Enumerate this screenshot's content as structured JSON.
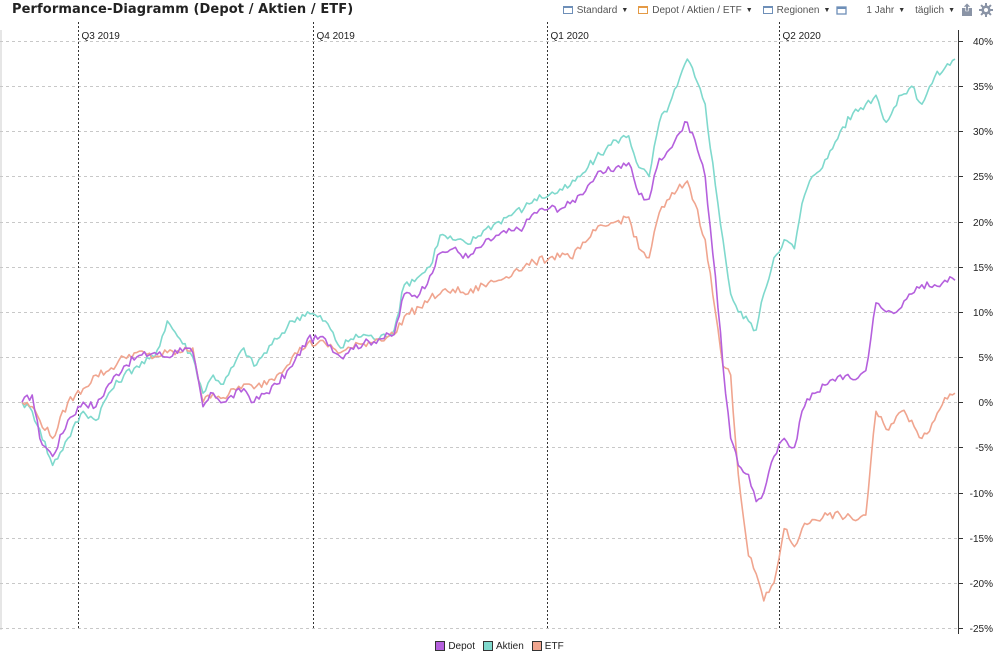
{
  "header": {
    "title": "Performance-Diagramm (Depot / Aktien / ETF)",
    "controls": [
      {
        "label": "Standard",
        "icon": "chart-view-icon",
        "box": "blue"
      },
      {
        "label": "Depot / Aktien / ETF",
        "icon": "chart-view-icon",
        "box": "orange"
      },
      {
        "label": "Regionen",
        "icon": "chart-view-icon",
        "box": "blue"
      }
    ],
    "period": "1 Jahr",
    "interval": "täglich",
    "icons": [
      "fullscreen-icon",
      "export-icon",
      "settings-icon"
    ]
  },
  "colors": {
    "depot": "#b560dd",
    "aktien": "#7fd9cd",
    "etf": "#f0a58f"
  },
  "chart_data": {
    "type": "line",
    "title": "",
    "xlabel": "",
    "ylabel": "",
    "x_range": [
      "2019-06-09",
      "2020-06-09"
    ],
    "ylim": [
      -25,
      40
    ],
    "y_ticks": [
      40,
      35,
      30,
      25,
      20,
      15,
      10,
      5,
      0,
      -5,
      -10,
      -15,
      -20,
      -25
    ],
    "y_tick_suffix": "%",
    "y_axis_side": "right",
    "grid": true,
    "legend_position": "bottom-center",
    "quarter_markers": [
      {
        "label": "Q3 2019",
        "date": "2019-07-01"
      },
      {
        "label": "Q4 2019",
        "date": "2019-10-01"
      },
      {
        "label": "Q1 2020",
        "date": "2020-01-01"
      },
      {
        "label": "Q2 2020",
        "date": "2020-04-01"
      }
    ],
    "series": [
      {
        "name": "Depot",
        "color": "#b560dd",
        "points": [
          [
            "2019-06-09",
            0
          ],
          [
            "2019-06-13",
            0.8
          ],
          [
            "2019-06-16",
            -4
          ],
          [
            "2019-06-21",
            -6
          ],
          [
            "2019-06-27",
            -2
          ],
          [
            "2019-07-03",
            0
          ],
          [
            "2019-07-08",
            -0.5
          ],
          [
            "2019-07-13",
            2
          ],
          [
            "2019-07-19",
            4
          ],
          [
            "2019-07-24",
            5
          ],
          [
            "2019-07-31",
            5.5
          ],
          [
            "2019-08-05",
            5
          ],
          [
            "2019-08-10",
            6
          ],
          [
            "2019-08-15",
            5.5
          ],
          [
            "2019-08-19",
            -0.5
          ],
          [
            "2019-08-23",
            1
          ],
          [
            "2019-08-27",
            0
          ],
          [
            "2019-09-04",
            1.5
          ],
          [
            "2019-09-08",
            0
          ],
          [
            "2019-09-17",
            2
          ],
          [
            "2019-09-23",
            4
          ],
          [
            "2019-09-29",
            7
          ],
          [
            "2019-10-06",
            7
          ],
          [
            "2019-10-12",
            5
          ],
          [
            "2019-10-16",
            6
          ],
          [
            "2019-10-21",
            6.5
          ],
          [
            "2019-10-27",
            7
          ],
          [
            "2019-11-02",
            7.5
          ],
          [
            "2019-11-06",
            12
          ],
          [
            "2019-11-12",
            12
          ],
          [
            "2019-11-16",
            14
          ],
          [
            "2019-11-20",
            16.5
          ],
          [
            "2019-11-25",
            17
          ],
          [
            "2019-12-01",
            16
          ],
          [
            "2019-12-07",
            17.5
          ],
          [
            "2019-12-13",
            18.5
          ],
          [
            "2019-12-19",
            19
          ],
          [
            "2019-12-23",
            19.5
          ],
          [
            "2019-12-27",
            21
          ],
          [
            "2020-01-02",
            21.5
          ],
          [
            "2020-01-07",
            21.5
          ],
          [
            "2020-01-10",
            22
          ],
          [
            "2020-01-14",
            23
          ],
          [
            "2020-01-17",
            24
          ],
          [
            "2020-01-20",
            25
          ],
          [
            "2020-01-24",
            25.5
          ],
          [
            "2020-01-28",
            26
          ],
          [
            "2020-02-02",
            26.5
          ],
          [
            "2020-02-06",
            23
          ],
          [
            "2020-02-10",
            22.5
          ],
          [
            "2020-02-14",
            27
          ],
          [
            "2020-02-18",
            28
          ],
          [
            "2020-02-21",
            29.5
          ],
          [
            "2020-02-25",
            31
          ],
          [
            "2020-02-28",
            29
          ],
          [
            "2020-03-03",
            25
          ],
          [
            "2020-03-07",
            14
          ],
          [
            "2020-03-10",
            4
          ],
          [
            "2020-03-13",
            -4
          ],
          [
            "2020-03-16",
            -7
          ],
          [
            "2020-03-20",
            -8
          ],
          [
            "2020-03-23",
            -11
          ],
          [
            "2020-03-26",
            -10
          ],
          [
            "2020-03-30",
            -6
          ],
          [
            "2020-04-03",
            -4
          ],
          [
            "2020-04-07",
            -5
          ],
          [
            "2020-04-10",
            -1
          ],
          [
            "2020-04-14",
            1
          ],
          [
            "2020-04-20",
            2
          ],
          [
            "2020-04-25",
            3
          ],
          [
            "2020-04-30",
            2.5
          ],
          [
            "2020-05-05",
            3.5
          ],
          [
            "2020-05-09",
            11
          ],
          [
            "2020-05-13",
            10
          ],
          [
            "2020-05-19",
            10.5
          ],
          [
            "2020-05-23",
            12
          ],
          [
            "2020-05-27",
            13
          ],
          [
            "2020-06-01",
            13
          ],
          [
            "2020-06-05",
            13.5
          ],
          [
            "2020-06-09",
            13.5
          ]
        ]
      },
      {
        "name": "Aktien",
        "color": "#7fd9cd",
        "points": [
          [
            "2019-06-09",
            0
          ],
          [
            "2019-06-13",
            -1
          ],
          [
            "2019-06-16",
            -3
          ],
          [
            "2019-06-21",
            -7
          ],
          [
            "2019-06-27",
            -4
          ],
          [
            "2019-07-03",
            -1
          ],
          [
            "2019-07-08",
            -2
          ],
          [
            "2019-07-13",
            1
          ],
          [
            "2019-07-19",
            3
          ],
          [
            "2019-07-24",
            4
          ],
          [
            "2019-07-31",
            5
          ],
          [
            "2019-08-05",
            9
          ],
          [
            "2019-08-10",
            7
          ],
          [
            "2019-08-15",
            5
          ],
          [
            "2019-08-19",
            1
          ],
          [
            "2019-08-23",
            3
          ],
          [
            "2019-08-27",
            2
          ],
          [
            "2019-09-04",
            6
          ],
          [
            "2019-09-08",
            4
          ],
          [
            "2019-09-17",
            7
          ],
          [
            "2019-09-23",
            9
          ],
          [
            "2019-09-29",
            10
          ],
          [
            "2019-10-06",
            9
          ],
          [
            "2019-10-12",
            6
          ],
          [
            "2019-10-16",
            7
          ],
          [
            "2019-10-21",
            7.5
          ],
          [
            "2019-10-27",
            7
          ],
          [
            "2019-11-02",
            8
          ],
          [
            "2019-11-06",
            13
          ],
          [
            "2019-11-12",
            14
          ],
          [
            "2019-11-16",
            15
          ],
          [
            "2019-11-20",
            18.5
          ],
          [
            "2019-11-25",
            18
          ],
          [
            "2019-12-01",
            17.5
          ],
          [
            "2019-12-07",
            19
          ],
          [
            "2019-12-13",
            20
          ],
          [
            "2019-12-19",
            21
          ],
          [
            "2019-12-23",
            21.5
          ],
          [
            "2019-12-27",
            22.5
          ],
          [
            "2020-01-02",
            23
          ],
          [
            "2020-01-07",
            23.5
          ],
          [
            "2020-01-10",
            24
          ],
          [
            "2020-01-14",
            25
          ],
          [
            "2020-01-17",
            26
          ],
          [
            "2020-01-20",
            27
          ],
          [
            "2020-01-24",
            28
          ],
          [
            "2020-01-28",
            29
          ],
          [
            "2020-02-02",
            29.5
          ],
          [
            "2020-02-06",
            26
          ],
          [
            "2020-02-10",
            25
          ],
          [
            "2020-02-14",
            31
          ],
          [
            "2020-02-18",
            33
          ],
          [
            "2020-02-21",
            35
          ],
          [
            "2020-02-25",
            38
          ],
          [
            "2020-02-28",
            36
          ],
          [
            "2020-03-03",
            33
          ],
          [
            "2020-03-07",
            24
          ],
          [
            "2020-03-10",
            18
          ],
          [
            "2020-03-13",
            12
          ],
          [
            "2020-03-16",
            10
          ],
          [
            "2020-03-20",
            9
          ],
          [
            "2020-03-23",
            8
          ],
          [
            "2020-03-26",
            12
          ],
          [
            "2020-03-30",
            16
          ],
          [
            "2020-04-03",
            18
          ],
          [
            "2020-04-07",
            17
          ],
          [
            "2020-04-10",
            22
          ],
          [
            "2020-04-14",
            25
          ],
          [
            "2020-04-20",
            27
          ],
          [
            "2020-04-25",
            30
          ],
          [
            "2020-04-30",
            32
          ],
          [
            "2020-05-05",
            33
          ],
          [
            "2020-05-09",
            34
          ],
          [
            "2020-05-13",
            31
          ],
          [
            "2020-05-19",
            34
          ],
          [
            "2020-05-23",
            35
          ],
          [
            "2020-05-27",
            33
          ],
          [
            "2020-06-01",
            36
          ],
          [
            "2020-06-05",
            37
          ],
          [
            "2020-06-09",
            38
          ]
        ]
      },
      {
        "name": "ETF",
        "color": "#f0a58f",
        "points": [
          [
            "2019-06-09",
            0
          ],
          [
            "2019-06-13",
            -0.5
          ],
          [
            "2019-06-16",
            -2
          ],
          [
            "2019-06-21",
            -4
          ],
          [
            "2019-06-27",
            0
          ],
          [
            "2019-07-03",
            1.5
          ],
          [
            "2019-07-08",
            3
          ],
          [
            "2019-07-13",
            3.5
          ],
          [
            "2019-07-19",
            5
          ],
          [
            "2019-07-24",
            5.5
          ],
          [
            "2019-07-31",
            5
          ],
          [
            "2019-08-05",
            5.5
          ],
          [
            "2019-08-10",
            5.5
          ],
          [
            "2019-08-15",
            6
          ],
          [
            "2019-08-19",
            0
          ],
          [
            "2019-08-23",
            1
          ],
          [
            "2019-08-27",
            0.5
          ],
          [
            "2019-09-04",
            2
          ],
          [
            "2019-09-08",
            1.5
          ],
          [
            "2019-09-17",
            3
          ],
          [
            "2019-09-23",
            5
          ],
          [
            "2019-09-29",
            6.5
          ],
          [
            "2019-10-06",
            6.5
          ],
          [
            "2019-10-12",
            5.5
          ],
          [
            "2019-10-16",
            6
          ],
          [
            "2019-10-21",
            6.5
          ],
          [
            "2019-10-27",
            7
          ],
          [
            "2019-11-02",
            7.5
          ],
          [
            "2019-11-06",
            9.5
          ],
          [
            "2019-11-12",
            10.5
          ],
          [
            "2019-11-16",
            11.5
          ],
          [
            "2019-11-20",
            12
          ],
          [
            "2019-11-25",
            12.5
          ],
          [
            "2019-12-01",
            12
          ],
          [
            "2019-12-07",
            13
          ],
          [
            "2019-12-13",
            13.5
          ],
          [
            "2019-12-19",
            14.5
          ],
          [
            "2019-12-23",
            15
          ],
          [
            "2019-12-27",
            15.5
          ],
          [
            "2020-01-02",
            16
          ],
          [
            "2020-01-07",
            16.5
          ],
          [
            "2020-01-10",
            16
          ],
          [
            "2020-01-14",
            17
          ],
          [
            "2020-01-17",
            18
          ],
          [
            "2020-01-20",
            19
          ],
          [
            "2020-01-24",
            19.5
          ],
          [
            "2020-01-28",
            20
          ],
          [
            "2020-02-02",
            20.5
          ],
          [
            "2020-02-06",
            17
          ],
          [
            "2020-02-10",
            16
          ],
          [
            "2020-02-14",
            21
          ],
          [
            "2020-02-18",
            22.5
          ],
          [
            "2020-02-21",
            23.5
          ],
          [
            "2020-02-25",
            24.5
          ],
          [
            "2020-02-28",
            22
          ],
          [
            "2020-03-03",
            18
          ],
          [
            "2020-03-07",
            10
          ],
          [
            "2020-03-10",
            4
          ],
          [
            "2020-03-13",
            3
          ],
          [
            "2020-03-16",
            -8
          ],
          [
            "2020-03-20",
            -17
          ],
          [
            "2020-03-23",
            -19
          ],
          [
            "2020-03-26",
            -22
          ],
          [
            "2020-03-30",
            -20
          ],
          [
            "2020-04-03",
            -14
          ],
          [
            "2020-04-07",
            -16
          ],
          [
            "2020-04-10",
            -14
          ],
          [
            "2020-04-14",
            -13
          ],
          [
            "2020-04-20",
            -12.5
          ],
          [
            "2020-04-25",
            -12.5
          ],
          [
            "2020-04-30",
            -13
          ],
          [
            "2020-05-05",
            -12.5
          ],
          [
            "2020-05-09",
            -1
          ],
          [
            "2020-05-13",
            -3
          ],
          [
            "2020-05-19",
            -1
          ],
          [
            "2020-05-23",
            -2
          ],
          [
            "2020-05-27",
            -4
          ],
          [
            "2020-06-01",
            -2
          ],
          [
            "2020-06-05",
            0.5
          ],
          [
            "2020-06-09",
            1
          ]
        ]
      }
    ]
  }
}
